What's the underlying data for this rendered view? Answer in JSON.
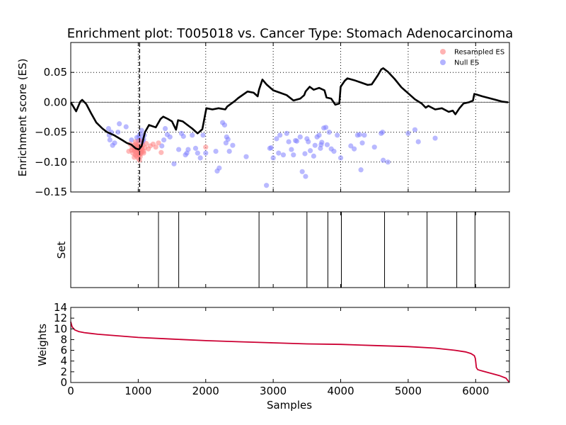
{
  "chart_data": [
    {
      "type": "line",
      "title": "Enrichment plot: T005018 vs. Cancer Type: Stomach Adenocarcinoma",
      "ylabel": "Enrichment score (ES)",
      "xlim": [
        0,
        6500
      ],
      "ylim": [
        -0.15,
        0.1
      ],
      "yticks": [
        -0.15,
        -0.1,
        -0.05,
        0.0,
        0.05
      ],
      "ytick_labels": [
        "−0.15",
        "−0.10",
        "−0.05",
        "0.00",
        "0.05"
      ],
      "xticks": [
        0,
        1000,
        2000,
        3000,
        4000,
        5000,
        6000
      ],
      "grid": true,
      "legend_position": "top-right",
      "legend": [
        "Resampled ES",
        "Null ES"
      ],
      "colors": {
        "es_line": "#000000",
        "resampled": "#ff8080",
        "null": "#8080ff",
        "weights": "#cc0033"
      },
      "peak_x": 1020,
      "es_curve": {
        "x": [
          0,
          80,
          140,
          170,
          230,
          300,
          380,
          470,
          540,
          640,
          760,
          830,
          900,
          960,
          1010,
          1050,
          1100,
          1160,
          1260,
          1330,
          1370,
          1440,
          1500,
          1560,
          1590,
          1660,
          1730,
          1800,
          1880,
          1950,
          2010,
          2100,
          2190,
          2290,
          2320,
          2430,
          2480,
          2620,
          2710,
          2770,
          2790,
          2840,
          2900,
          2960,
          3000,
          3100,
          3200,
          3300,
          3400,
          3460,
          3480,
          3540,
          3600,
          3680,
          3760,
          3790,
          3860,
          3920,
          3980,
          4000,
          4060,
          4100,
          4200,
          4300,
          4400,
          4460,
          4550,
          4600,
          4630,
          4700,
          4800,
          4900,
          5000,
          5100,
          5200,
          5260,
          5300,
          5400,
          5500,
          5600,
          5660,
          5700,
          5760,
          5820,
          5900,
          5960,
          5980,
          6010,
          6100,
          6200,
          6300,
          6400,
          6480
        ],
        "y": [
          0.0,
          -0.015,
          0.001,
          0.004,
          -0.003,
          -0.018,
          -0.034,
          -0.044,
          -0.05,
          -0.055,
          -0.063,
          -0.068,
          -0.071,
          -0.077,
          -0.079,
          -0.073,
          -0.05,
          -0.038,
          -0.042,
          -0.028,
          -0.024,
          -0.028,
          -0.032,
          -0.046,
          -0.03,
          -0.032,
          -0.038,
          -0.044,
          -0.052,
          -0.045,
          -0.01,
          -0.012,
          -0.01,
          -0.012,
          -0.007,
          0.002,
          0.007,
          0.018,
          0.016,
          0.01,
          0.021,
          0.038,
          0.03,
          0.024,
          0.02,
          0.016,
          0.012,
          0.003,
          0.006,
          0.012,
          0.018,
          0.026,
          0.021,
          0.024,
          0.02,
          0.008,
          0.006,
          -0.004,
          -0.002,
          0.026,
          0.036,
          0.04,
          0.037,
          0.033,
          0.029,
          0.03,
          0.045,
          0.055,
          0.057,
          0.051,
          0.039,
          0.025,
          0.015,
          0.005,
          -0.002,
          -0.009,
          -0.006,
          -0.012,
          -0.01,
          -0.016,
          -0.014,
          -0.02,
          -0.01,
          -0.002,
          0.0,
          0.003,
          0.014,
          0.013,
          0.01,
          0.007,
          0.004,
          0.001,
          0.0
        ]
      },
      "resampled_es": {
        "x": [
          860,
          880,
          900,
          910,
          920,
          930,
          940,
          950,
          955,
          960,
          965,
          970,
          975,
          980,
          985,
          990,
          995,
          1000,
          1005,
          1010,
          1015,
          1020,
          1025,
          1030,
          1035,
          1040,
          1045,
          1050,
          1060,
          1070,
          1080,
          1100,
          1120,
          1150,
          1180,
          1220,
          1260,
          1300,
          1340,
          1020,
          990,
          960,
          940,
          1000,
          1010,
          1030,
          1050,
          1080,
          2000
        ],
        "y": [
          -0.082,
          -0.07,
          -0.08,
          -0.076,
          -0.085,
          -0.072,
          -0.081,
          -0.078,
          -0.088,
          -0.07,
          -0.083,
          -0.076,
          -0.09,
          -0.08,
          -0.072,
          -0.086,
          -0.079,
          -0.094,
          -0.082,
          -0.075,
          -0.088,
          -0.097,
          -0.08,
          -0.091,
          -0.078,
          -0.086,
          -0.074,
          -0.083,
          -0.079,
          -0.072,
          -0.085,
          -0.076,
          -0.069,
          -0.078,
          -0.073,
          -0.07,
          -0.075,
          -0.068,
          -0.084,
          -0.064,
          -0.074,
          -0.066,
          -0.092,
          -0.071,
          -0.088,
          -0.083,
          -0.077,
          -0.082,
          -0.075
        ]
      },
      "null_es": {
        "x": [
          560,
          570,
          580,
          600,
          620,
          650,
          700,
          720,
          820,
          900,
          980,
          1000,
          1010,
          1030,
          1040,
          1050,
          1060,
          1070,
          1080,
          1090,
          1350,
          1380,
          1400,
          1430,
          1470,
          1530,
          1600,
          1640,
          1670,
          1700,
          1720,
          1740,
          1800,
          1850,
          1880,
          1920,
          1960,
          2000,
          2150,
          2170,
          2200,
          2250,
          2280,
          2300,
          2310,
          2330,
          2350,
          2400,
          2600,
          2900,
          2950,
          2970,
          3000,
          3050,
          3080,
          3100,
          3150,
          3200,
          3230,
          3270,
          3300,
          3330,
          3350,
          3400,
          3430,
          3470,
          3480,
          3500,
          3520,
          3550,
          3600,
          3620,
          3650,
          3680,
          3700,
          3710,
          3720,
          3750,
          3780,
          3800,
          3830,
          3860,
          3900,
          3950,
          4000,
          4150,
          4200,
          4250,
          4280,
          4300,
          4320,
          4350,
          4500,
          4600,
          4620,
          4630,
          4700,
          5000,
          5100,
          5150,
          5400
        ],
        "y": [
          -0.044,
          -0.055,
          -0.063,
          -0.05,
          -0.072,
          -0.068,
          -0.05,
          -0.036,
          -0.041,
          -0.063,
          -0.059,
          -0.064,
          -0.057,
          -0.053,
          -0.061,
          -0.047,
          -0.068,
          -0.065,
          -0.062,
          -0.055,
          -0.073,
          -0.063,
          -0.044,
          -0.054,
          -0.058,
          -0.103,
          -0.079,
          -0.052,
          -0.057,
          -0.088,
          -0.085,
          -0.079,
          -0.055,
          -0.077,
          -0.085,
          -0.093,
          -0.055,
          -0.085,
          -0.082,
          -0.115,
          -0.11,
          -0.034,
          -0.038,
          -0.068,
          -0.058,
          -0.062,
          -0.082,
          -0.072,
          -0.091,
          -0.139,
          -0.077,
          -0.076,
          -0.093,
          -0.061,
          -0.085,
          -0.055,
          -0.088,
          -0.052,
          -0.066,
          -0.079,
          -0.088,
          -0.064,
          -0.065,
          -0.058,
          -0.116,
          -0.086,
          -0.124,
          -0.061,
          -0.066,
          -0.081,
          -0.09,
          -0.072,
          -0.058,
          -0.055,
          -0.077,
          -0.071,
          -0.067,
          -0.043,
          -0.042,
          -0.071,
          -0.05,
          -0.078,
          -0.082,
          -0.055,
          -0.093,
          -0.073,
          -0.078,
          -0.055,
          -0.054,
          -0.113,
          -0.068,
          -0.055,
          -0.075,
          -0.052,
          -0.05,
          -0.097,
          -0.1,
          -0.052,
          -0.046,
          -0.066,
          -0.06
        ]
      }
    },
    {
      "type": "other",
      "ylabel": "Set",
      "xlim": [
        0,
        6500
      ],
      "set_positions": [
        1300,
        1600,
        2790,
        3500,
        3810,
        4010,
        4650,
        5280,
        5720,
        5990
      ]
    },
    {
      "type": "line",
      "xlabel": "Samples",
      "ylabel": "Weights",
      "xlim": [
        0,
        6500
      ],
      "ylim": [
        0,
        14
      ],
      "yticks": [
        0,
        2,
        4,
        6,
        8,
        10,
        12,
        14
      ],
      "xticks": [
        0,
        1000,
        2000,
        3000,
        4000,
        5000,
        6000
      ],
      "xtick_labels": [
        "0",
        "1000",
        "2000",
        "3000",
        "4000",
        "5000",
        "6000"
      ],
      "weights_curve": {
        "x": [
          0,
          20,
          60,
          120,
          200,
          400,
          700,
          1000,
          1500,
          2000,
          2500,
          3000,
          3500,
          4000,
          4500,
          5000,
          5400,
          5700,
          5850,
          5930,
          5980,
          5995,
          6000,
          6010,
          6030,
          6080,
          6200,
          6350,
          6450,
          6500
        ],
        "y": [
          11.3,
          10.4,
          9.8,
          9.5,
          9.3,
          9.0,
          8.7,
          8.4,
          8.1,
          7.8,
          7.6,
          7.4,
          7.2,
          7.1,
          6.9,
          6.7,
          6.4,
          6.0,
          5.7,
          5.4,
          5.0,
          4.5,
          4.0,
          2.8,
          2.4,
          2.2,
          1.8,
          1.3,
          0.8,
          0.0
        ]
      }
    }
  ]
}
